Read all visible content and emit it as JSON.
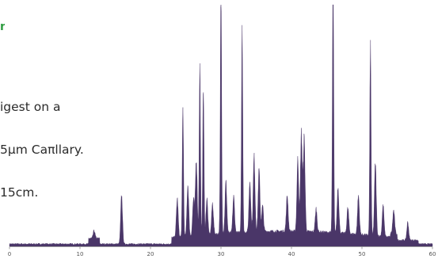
{
  "caption": {
    "lines": [
      "igest on a",
      "5µm Caπllary.",
      "15cm."
    ],
    "corner_mark": "n",
    "corner_mark_color": "#2e9c40"
  },
  "chart_data": {
    "type": "area",
    "title": "",
    "xlabel": "",
    "ylabel": "",
    "xlim": [
      0,
      60
    ],
    "ylim": [
      0,
      100
    ],
    "xticks": [
      0,
      10,
      20,
      30,
      40,
      50,
      60
    ],
    "grid": false,
    "legend": "none",
    "colors": {
      "fill": "#4a3668",
      "axis": "#8a8a8a"
    },
    "peaks": [
      {
        "x": 12.0,
        "y": 3
      },
      {
        "x": 15.9,
        "y": 19
      },
      {
        "x": 23.8,
        "y": 15
      },
      {
        "x": 24.6,
        "y": 50
      },
      {
        "x": 25.3,
        "y": 20
      },
      {
        "x": 26.1,
        "y": 14
      },
      {
        "x": 26.5,
        "y": 30
      },
      {
        "x": 27.0,
        "y": 66
      },
      {
        "x": 27.5,
        "y": 58
      },
      {
        "x": 28.0,
        "y": 14
      },
      {
        "x": 28.8,
        "y": 12
      },
      {
        "x": 30.0,
        "y": 95
      },
      {
        "x": 30.7,
        "y": 20
      },
      {
        "x": 31.8,
        "y": 14
      },
      {
        "x": 33.0,
        "y": 82
      },
      {
        "x": 34.1,
        "y": 20
      },
      {
        "x": 34.7,
        "y": 29
      },
      {
        "x": 35.4,
        "y": 24
      },
      {
        "x": 35.9,
        "y": 10
      },
      {
        "x": 39.4,
        "y": 14
      },
      {
        "x": 40.9,
        "y": 28
      },
      {
        "x": 41.4,
        "y": 38
      },
      {
        "x": 41.8,
        "y": 36
      },
      {
        "x": 43.5,
        "y": 9
      },
      {
        "x": 45.9,
        "y": 100
      },
      {
        "x": 46.6,
        "y": 18
      },
      {
        "x": 48.0,
        "y": 10
      },
      {
        "x": 49.5,
        "y": 15
      },
      {
        "x": 51.2,
        "y": 74
      },
      {
        "x": 51.9,
        "y": 28
      },
      {
        "x": 53.0,
        "y": 12
      },
      {
        "x": 54.5,
        "y": 9
      },
      {
        "x": 56.5,
        "y": 7
      }
    ]
  }
}
